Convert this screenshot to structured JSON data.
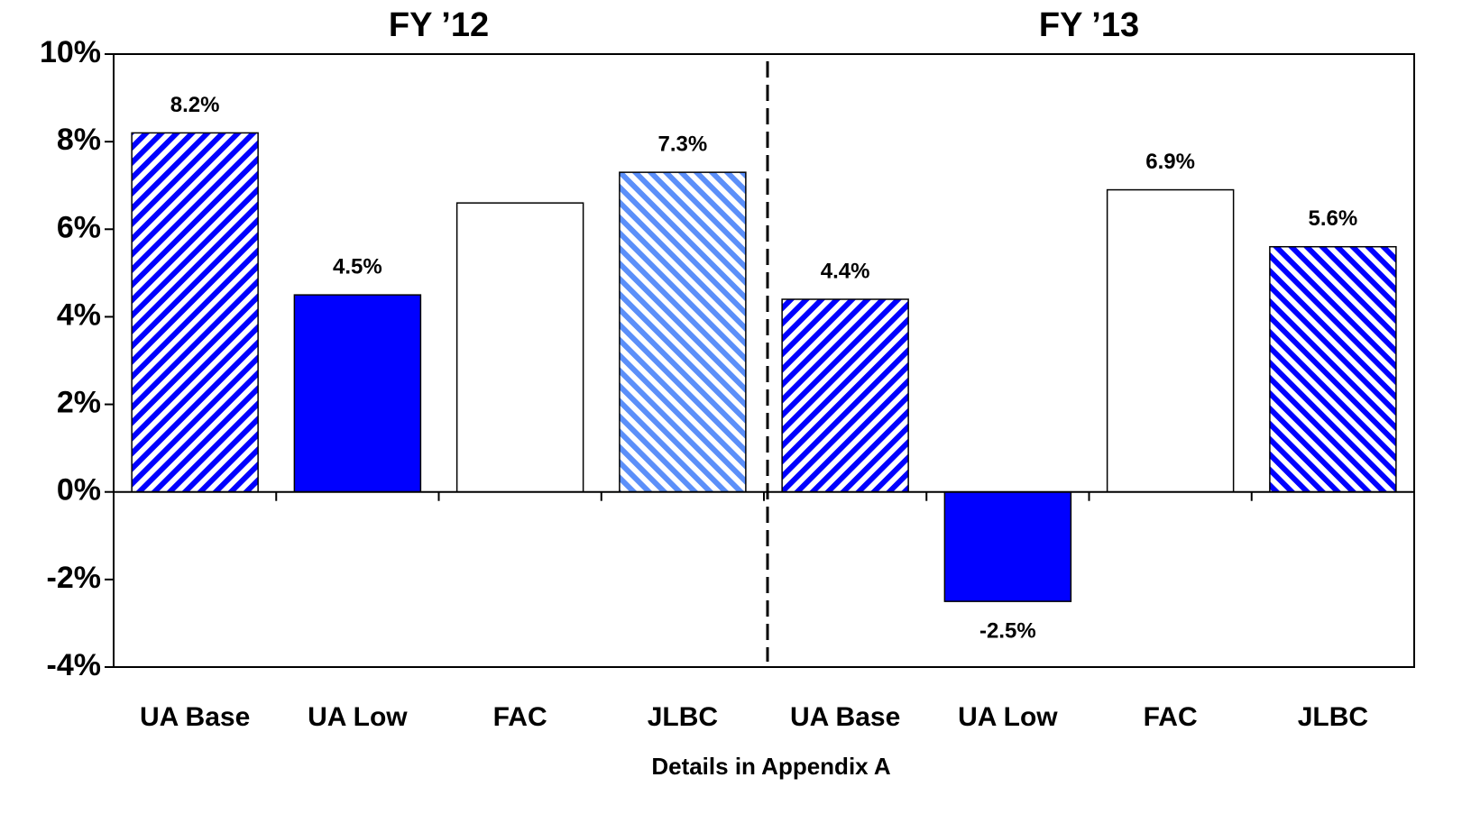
{
  "chart_data": {
    "type": "bar",
    "group_labels": [
      "FY ’12",
      "FY ’13"
    ],
    "x_label": "Details in Appendix A",
    "categories": [
      "UA Base",
      "UA Low",
      "FAC",
      "JLBC",
      "UA Base",
      "UA Low",
      "FAC",
      "JLBC"
    ],
    "values": [
      8.2,
      4.5,
      6.6,
      7.3,
      4.4,
      -2.5,
      6.9,
      5.6
    ],
    "value_labels": [
      "8.2%",
      "4.5%",
      null,
      "7.3%",
      "4.4%",
      "-2.5%",
      "6.9%",
      "5.6%"
    ],
    "colors": [
      "#0000ff",
      "#0000ff",
      "#ffffff",
      "#5b8ff9",
      "#0000ff",
      "#0000ff",
      "#ffffff",
      "#0000ff"
    ],
    "hatches": [
      "/",
      "",
      "",
      "\\",
      "/",
      "",
      "",
      "\\"
    ],
    "ylim": [
      -4,
      10
    ],
    "yticks": [
      {
        "value": -4,
        "label": "-4%"
      },
      {
        "value": -2,
        "label": "-2%"
      },
      {
        "value": 0,
        "label": "0%"
      },
      {
        "value": 2,
        "label": "2%"
      },
      {
        "value": 4,
        "label": "4%"
      },
      {
        "value": 6,
        "label": "6%"
      },
      {
        "value": 8,
        "label": "8%"
      },
      {
        "value": 10,
        "label": "10%"
      }
    ],
    "grid": false
  }
}
